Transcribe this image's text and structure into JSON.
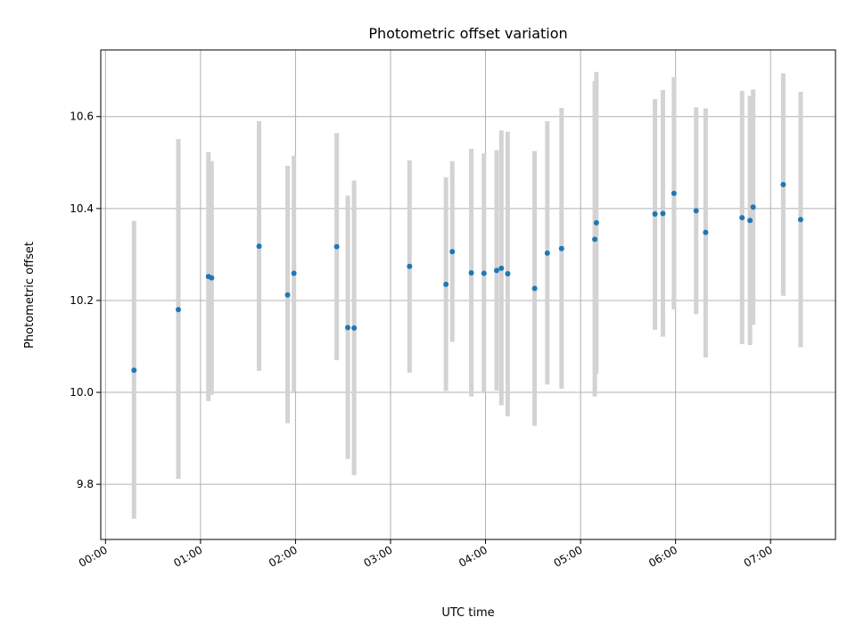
{
  "chart_data": {
    "type": "scatter",
    "title": "Photometric offset variation",
    "xlabel": "UTC time",
    "ylabel": "Photometric offset",
    "xlim": [
      "23:57",
      "07:41"
    ],
    "ylim": [
      9.68,
      10.745
    ],
    "grid": true,
    "x_ticks": [
      "00:00",
      "01:00",
      "02:00",
      "03:00",
      "04:00",
      "05:00",
      "06:00",
      "07:00"
    ],
    "y_ticks": [
      9.8,
      10.0,
      10.2,
      10.4,
      10.6
    ],
    "y_tick_labels": [
      "9.8",
      "10.0",
      "10.2",
      "10.4",
      "10.6"
    ],
    "point_color": "#1f77b4",
    "errorbar_color": "#d3d3d3",
    "points": [
      {
        "x": "00:18",
        "y": 10.048,
        "ylow": 9.725,
        "yhigh": 10.373
      },
      {
        "x": "00:46",
        "y": 10.18,
        "ylow": 9.812,
        "yhigh": 10.551
      },
      {
        "x": "01:05",
        "y": 10.252,
        "ylow": 9.981,
        "yhigh": 10.523
      },
      {
        "x": "01:07",
        "y": 10.249,
        "ylow": 9.995,
        "yhigh": 10.503
      },
      {
        "x": "01:37",
        "y": 10.318,
        "ylow": 10.047,
        "yhigh": 10.59
      },
      {
        "x": "01:55",
        "y": 10.212,
        "ylow": 9.933,
        "yhigh": 10.493
      },
      {
        "x": "01:59",
        "y": 10.259,
        "ylow": 10.002,
        "yhigh": 10.515
      },
      {
        "x": "02:26",
        "y": 10.317,
        "ylow": 10.07,
        "yhigh": 10.564
      },
      {
        "x": "02:33",
        "y": 10.141,
        "ylow": 9.855,
        "yhigh": 10.428
      },
      {
        "x": "02:37",
        "y": 10.14,
        "ylow": 9.82,
        "yhigh": 10.461
      },
      {
        "x": "03:12",
        "y": 10.274,
        "ylow": 10.043,
        "yhigh": 10.505
      },
      {
        "x": "03:35",
        "y": 10.235,
        "ylow": 10.003,
        "yhigh": 10.468
      },
      {
        "x": "03:39",
        "y": 10.306,
        "ylow": 10.11,
        "yhigh": 10.503
      },
      {
        "x": "03:51",
        "y": 10.26,
        "ylow": 9.991,
        "yhigh": 10.53
      },
      {
        "x": "03:59",
        "y": 10.259,
        "ylow": 10.0,
        "yhigh": 10.52
      },
      {
        "x": "04:07",
        "y": 10.265,
        "ylow": 10.004,
        "yhigh": 10.527
      },
      {
        "x": "04:10",
        "y": 10.27,
        "ylow": 9.972,
        "yhigh": 10.57
      },
      {
        "x": "04:14",
        "y": 10.258,
        "ylow": 9.948,
        "yhigh": 10.567
      },
      {
        "x": "04:31",
        "y": 10.226,
        "ylow": 9.927,
        "yhigh": 10.525
      },
      {
        "x": "04:39",
        "y": 10.303,
        "ylow": 10.017,
        "yhigh": 10.59
      },
      {
        "x": "04:48",
        "y": 10.313,
        "ylow": 10.008,
        "yhigh": 10.619
      },
      {
        "x": "05:09",
        "y": 10.333,
        "ylow": 9.991,
        "yhigh": 10.677
      },
      {
        "x": "05:10",
        "y": 10.369,
        "ylow": 10.04,
        "yhigh": 10.697
      },
      {
        "x": "05:47",
        "y": 10.388,
        "ylow": 10.136,
        "yhigh": 10.638
      },
      {
        "x": "05:52",
        "y": 10.389,
        "ylow": 10.121,
        "yhigh": 10.658
      },
      {
        "x": "05:59",
        "y": 10.433,
        "ylow": 10.18,
        "yhigh": 10.686
      },
      {
        "x": "06:13",
        "y": 10.395,
        "ylow": 10.17,
        "yhigh": 10.62
      },
      {
        "x": "06:19",
        "y": 10.348,
        "ylow": 10.076,
        "yhigh": 10.618
      },
      {
        "x": "06:42",
        "y": 10.38,
        "ylow": 10.105,
        "yhigh": 10.656
      },
      {
        "x": "06:47",
        "y": 10.374,
        "ylow": 10.103,
        "yhigh": 10.645
      },
      {
        "x": "06:49",
        "y": 10.403,
        "ylow": 10.147,
        "yhigh": 10.659
      },
      {
        "x": "07:08",
        "y": 10.452,
        "ylow": 10.21,
        "yhigh": 10.694
      },
      {
        "x": "07:19",
        "y": 10.376,
        "ylow": 10.098,
        "yhigh": 10.654
      }
    ]
  }
}
